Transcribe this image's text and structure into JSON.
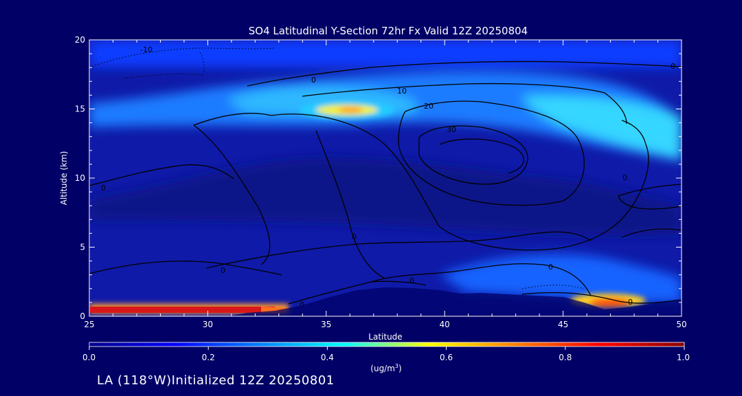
{
  "chart_data": {
    "type": "heatmap",
    "title": "SO4 Latitudinal Y-Section 72hr  Fx Valid 12Z 20250804",
    "xlabel": "Latitude",
    "ylabel": "Altitude (km)",
    "xlim": [
      25,
      50
    ],
    "ylim": [
      0,
      20
    ],
    "x_ticks": [
      25,
      30,
      35,
      40,
      45,
      50
    ],
    "y_ticks": [
      0,
      5,
      10,
      15,
      20
    ],
    "colorbar": {
      "label": "(ug/m³)",
      "label_text": "(ug/m",
      "label_sup": "3",
      "label_close": ")",
      "range": [
        0.0,
        1.0
      ],
      "tick_values": [
        0.0,
        0.2,
        0.4,
        0.6,
        0.8,
        1.0
      ],
      "tick_labels": [
        "0.0",
        "0.2",
        "0.4",
        "0.6",
        "0.8",
        "1.0"
      ],
      "colors": [
        "#00008b",
        "#0000ff",
        "#0080ff",
        "#00ffff",
        "#ffff00",
        "#ff8000",
        "#ff0000",
        "#8b0000"
      ]
    },
    "field_regions": [
      {
        "name": "background",
        "value": 0.18
      },
      {
        "name": "upper-aerosol-layer",
        "lat_range": [
          25,
          50
        ],
        "alt_range": [
          13.5,
          17
        ],
        "value": 0.32
      },
      {
        "name": "plume-near-36N",
        "lat": 36.0,
        "alt": 14.8,
        "value": 0.65
      },
      {
        "name": "surface-layer-south",
        "lat_range": [
          25,
          33
        ],
        "alt_range": [
          0,
          0.5
        ],
        "value": 0.9
      },
      {
        "name": "surface-hotspot-47N",
        "lat": 47.0,
        "alt": 0.8,
        "value": 0.82
      },
      {
        "name": "low-level-layer-north",
        "lat_range": [
          42,
          50
        ],
        "alt_range": [
          0.5,
          3
        ],
        "value": 0.35
      }
    ],
    "contours": {
      "type": "wind-speed-isolines",
      "levels_labeled": [
        -10,
        0,
        10,
        20,
        30
      ],
      "jet_core": {
        "lat": 42.5,
        "alt": 11.5
      }
    },
    "annotation": "LA (118°W)Initialized 12Z 20250801"
  }
}
